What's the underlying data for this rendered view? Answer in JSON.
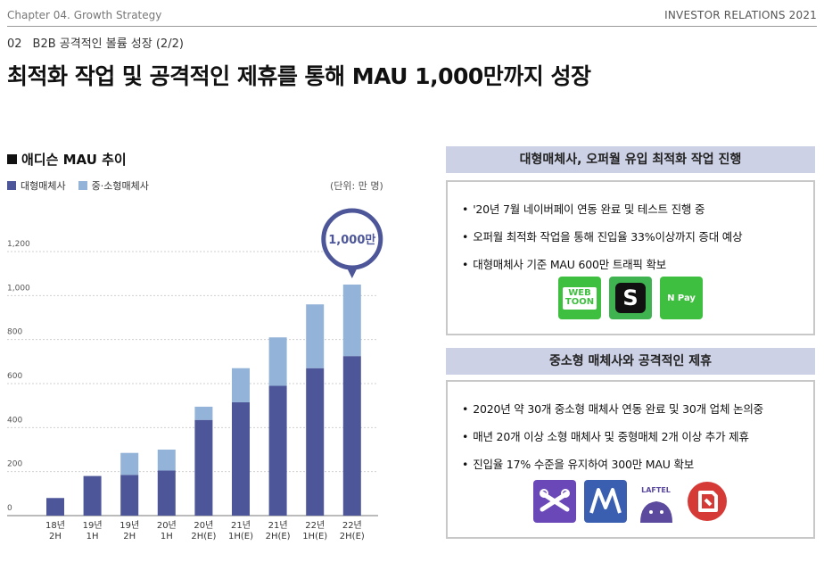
{
  "header": {
    "chapter": "Chapter 04. Growth Strategy",
    "ir_label": "INVESTOR RELATIONS 2021",
    "section_num": "02",
    "section_title": "B2B 공격적인 볼륨 성장 (2/2)",
    "main_title": "최적화 작업 및 공격적인 제휴를 통해 MAU 1,000만까지 성장"
  },
  "chart_data": {
    "type": "bar",
    "stacked": true,
    "title": "애디슨 MAU 추이",
    "unit_label": "(단위: 만 명)",
    "categories": [
      "18년\n2H",
      "19년\n1H",
      "19년\n2H",
      "20년\n1H",
      "20년\n2H(E)",
      "21년\n1H(E)",
      "21년\n2H(E)",
      "22년\n1H(E)",
      "22년\n2H(E)"
    ],
    "series": [
      {
        "name": "대형매체사",
        "color": "#4c5699",
        "values": [
          80,
          180,
          185,
          205,
          435,
          515,
          590,
          670,
          725
        ]
      },
      {
        "name": "중·소형매체사",
        "color": "#93b3d9",
        "values": [
          0,
          0,
          100,
          95,
          60,
          155,
          220,
          290,
          325
        ]
      }
    ],
    "yticks": [
      0,
      200,
      400,
      600,
      800,
      1000,
      1200
    ],
    "ytick_labels": [
      "0",
      "200",
      "400",
      "600",
      "800",
      "1,000",
      "1,200"
    ],
    "ylim": [
      0,
      1200
    ],
    "callout": "1,000만",
    "grid": true
  },
  "panel1": {
    "heading": "대형매체사, 오퍼월 유입 최적화 작업 진행",
    "bullets": [
      "'20년 7월 네이버페이 연동 완료 및 테스트 진행 중",
      "오퍼월 최적화 작업을 통해 진입율 33%이상까지 증대 예상",
      "대형매체사 기준 MAU 600만 트래픽 확보"
    ],
    "logos": [
      {
        "name": "webtoon-logo",
        "text": "WEB\nTOON",
        "color": "#3fbf3f"
      },
      {
        "name": "s-logo",
        "text": "S",
        "color": "#3fb34f"
      },
      {
        "name": "npay-logo",
        "text": "N Pay",
        "color": "#3fbf3f"
      }
    ]
  },
  "panel2": {
    "heading": "중소형 매체사와 공격적인 제휴",
    "bullets": [
      "2020년 약 30개 중소형 매체사 연동 완료 및 30개 업체 논의중",
      "매년 20개 이상 소형 매체사 및 중형매체 2개 이상 추가 제휴",
      "진입율 17% 수준을 유지하여 300만 MAU 확보"
    ],
    "logos": [
      {
        "name": "ribbon-app-logo",
        "color": "#6a48b8"
      },
      {
        "name": "m-app-logo",
        "color": "#3a5fb0"
      },
      {
        "name": "laftel-logo",
        "text": "LAFTEL",
        "color": "#5b4a9e"
      },
      {
        "name": "red-app-logo",
        "color": "#d63a36"
      }
    ]
  }
}
